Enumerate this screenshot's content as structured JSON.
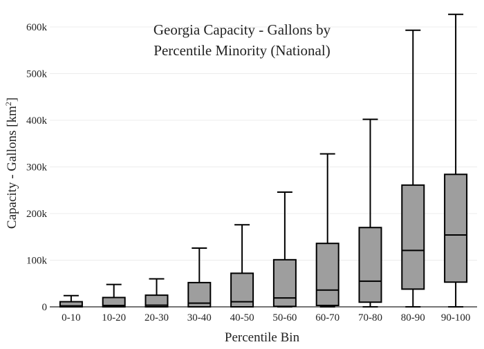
{
  "chart_data": {
    "type": "box",
    "title_lines": [
      "Georgia Capacity - Gallons by",
      "Percentile Minority (National)"
    ],
    "xlabel": "Percentile Bin",
    "ylabel": "Capacity - Gallons  [km",
    "ylabel_sup": "2",
    "ylabel_close": "]",
    "ylim": [
      0,
      640000
    ],
    "yticks": [
      0,
      100000,
      200000,
      300000,
      400000,
      500000,
      600000
    ],
    "ytick_labels": [
      "0",
      "100k",
      "200k",
      "300k",
      "400k",
      "500k",
      "600k"
    ],
    "grid": true,
    "categories": [
      "0-10",
      "10-20",
      "20-30",
      "30-40",
      "40-50",
      "50-60",
      "60-70",
      "70-80",
      "80-90",
      "90-100"
    ],
    "boxes": [
      {
        "min": 0,
        "q1": 0,
        "median": 2000,
        "q3": 11000,
        "max": 24000
      },
      {
        "min": 0,
        "q1": 0,
        "median": 3000,
        "q3": 20000,
        "max": 48000
      },
      {
        "min": 0,
        "q1": 0,
        "median": 3500,
        "q3": 25000,
        "max": 60000
      },
      {
        "min": 0,
        "q1": 0,
        "median": 8000,
        "q3": 52000,
        "max": 126000
      },
      {
        "min": 0,
        "q1": 0,
        "median": 11000,
        "q3": 72000,
        "max": 176000
      },
      {
        "min": 0,
        "q1": 1000,
        "median": 19000,
        "q3": 101000,
        "max": 246000
      },
      {
        "min": 0,
        "q1": 3000,
        "median": 36000,
        "q3": 136000,
        "max": 328000
      },
      {
        "min": 0,
        "q1": 10000,
        "median": 55000,
        "q3": 170000,
        "max": 402000
      },
      {
        "min": 0,
        "q1": 38000,
        "median": 121000,
        "q3": 261000,
        "max": 593000
      },
      {
        "min": 0,
        "q1": 53000,
        "median": 154000,
        "q3": 284000,
        "max": 627000
      }
    ],
    "colors": {
      "box_fill": "#9e9e9e",
      "line": "#000000",
      "grid": "#ececec"
    }
  }
}
